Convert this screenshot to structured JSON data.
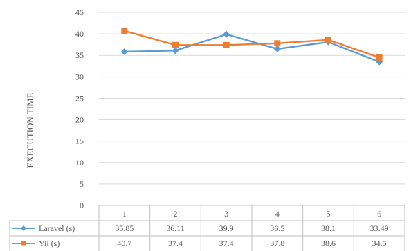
{
  "chart_data": {
    "type": "line",
    "title": "",
    "xlabel": "",
    "ylabel": "EXECUTION TIME",
    "categories": [
      "1",
      "2",
      "3",
      "4",
      "5",
      "6"
    ],
    "ylim": [
      0,
      45
    ],
    "yticks": [
      0,
      5,
      10,
      15,
      20,
      25,
      30,
      35,
      40,
      45
    ],
    "grid": "horizontal",
    "legend": "data-table-bottom",
    "series": [
      {
        "name": "Laravel (s)",
        "values": [
          35.85,
          36.11,
          39.9,
          36.5,
          38.1,
          33.49
        ],
        "labels": [
          "35.85",
          "36.11",
          "39.9",
          "36.5",
          "38.1",
          "33.49"
        ],
        "color": "#5B9BD5",
        "marker": "diamond"
      },
      {
        "name": "Yii (s)",
        "values": [
          40.7,
          37.4,
          37.4,
          37.8,
          38.6,
          34.5
        ],
        "labels": [
          "40.7",
          "37.4",
          "37.4",
          "37.8",
          "38.6",
          "34.5"
        ],
        "color": "#ED7D31",
        "marker": "square"
      }
    ]
  }
}
